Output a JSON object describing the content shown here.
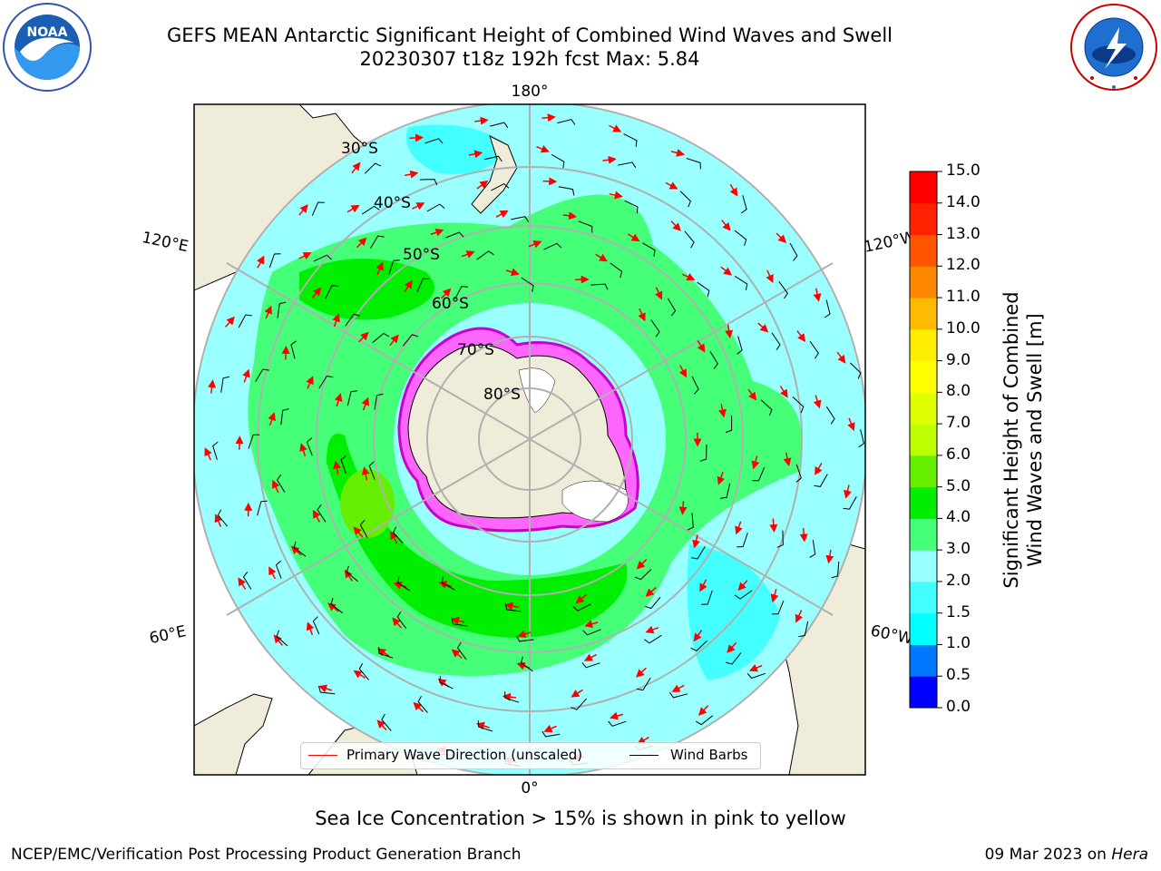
{
  "title": {
    "line1": "GEFS MEAN Antarctic Significant Height of Combined Wind Waves and Swell",
    "line2": "20230307 t18z 192h fcst   Max: 5.84"
  },
  "map": {
    "longitude_labels": [
      "180°",
      "120°E",
      "120°W",
      "60°E",
      "60°W",
      "0°"
    ],
    "latitude_labels": [
      "30°S",
      "40°S",
      "50°S",
      "60°S",
      "70°S",
      "80°S"
    ]
  },
  "colorbar": {
    "title_line1": "Significant Height of Combined",
    "title_line2": "Wind Waves and Swell [m]",
    "ticks": [
      "0.0",
      "0.5",
      "1.0",
      "1.5",
      "2.0",
      "3.0",
      "4.0",
      "5.0",
      "6.0",
      "7.0",
      "8.0",
      "9.0",
      "10.0",
      "11.0",
      "12.0",
      "13.0",
      "14.0",
      "15.0"
    ],
    "colors": [
      "#0000ff",
      "#0077ff",
      "#00ffff",
      "#44ffff",
      "#99ffff",
      "#44ff77",
      "#00ee00",
      "#66ee00",
      "#bbff00",
      "#ddff00",
      "#ffff00",
      "#ffee00",
      "#ffbb00",
      "#ff8800",
      "#ff5500",
      "#ff2200",
      "#ff0000"
    ]
  },
  "legend": {
    "wave_label": "Primary Wave Direction (unscaled)",
    "wave_color": "#ff0000",
    "barb_label": "Wind Barbs",
    "barb_color": "#000000"
  },
  "subtitle": "Sea Ice Concentration > 15% is shown in pink to yellow",
  "footer": {
    "left": "NCEP/EMC/Verification Post Processing Product Generation Branch",
    "date": "09 Mar 2023 on",
    "machine": "Hera"
  },
  "logos": {
    "noaa_text": "NOAA",
    "nws_text": "NATIONAL WEATHER SERVICE"
  }
}
